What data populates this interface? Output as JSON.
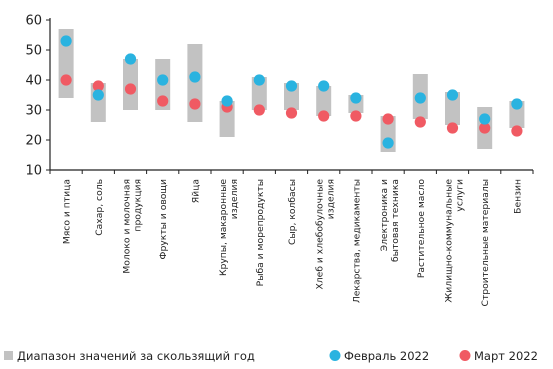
{
  "chart_data": {
    "type": "scatter",
    "ylim": [
      10,
      60
    ],
    "yticks": [
      10,
      20,
      30,
      40,
      50,
      60
    ],
    "grid": false,
    "legend_position": "bottom",
    "colors": {
      "range": "#c2c2c2",
      "feb": "#2ab3e0",
      "mar": "#f05a63"
    },
    "categories": [
      "Мясо и птица",
      "Сахар, соль",
      "Молоко и молочная продукция",
      "Фрукты и овощи",
      "Яйца",
      "Крупы, макаронные изделия",
      "Рыба и морепродукты",
      "Сыр, колбасы",
      "Хлеб и хлебобулочные изделия",
      "Лекарства, медикаменты",
      "Электроника и бытовая техника",
      "Растительное масло",
      "Жилищно-коммунальные услуги",
      "Строительные материалы",
      "Бензин"
    ],
    "range": [
      [
        34,
        57
      ],
      [
        26,
        39
      ],
      [
        30,
        47
      ],
      [
        30,
        47
      ],
      [
        26,
        52
      ],
      [
        21,
        33
      ],
      [
        30,
        41
      ],
      [
        30,
        39
      ],
      [
        28,
        38
      ],
      [
        29,
        35
      ],
      [
        16,
        28
      ],
      [
        27,
        42
      ],
      [
        25,
        36
      ],
      [
        17,
        31
      ],
      [
        24,
        33
      ]
    ],
    "series": [
      {
        "name": "Февраль 2022",
        "values": [
          53,
          35,
          47,
          40,
          41,
          33,
          40,
          38,
          38,
          34,
          19,
          34,
          35,
          27,
          32
        ]
      },
      {
        "name": "Март 2022",
        "values": [
          40,
          38,
          37,
          33,
          32,
          31,
          30,
          29,
          28,
          28,
          27,
          26,
          24,
          24,
          23
        ]
      }
    ],
    "legend": {
      "range_label": "Диапазон значений за скользящий год",
      "feb_label": "Февраль 2022",
      "mar_label": "Март 2022"
    }
  }
}
